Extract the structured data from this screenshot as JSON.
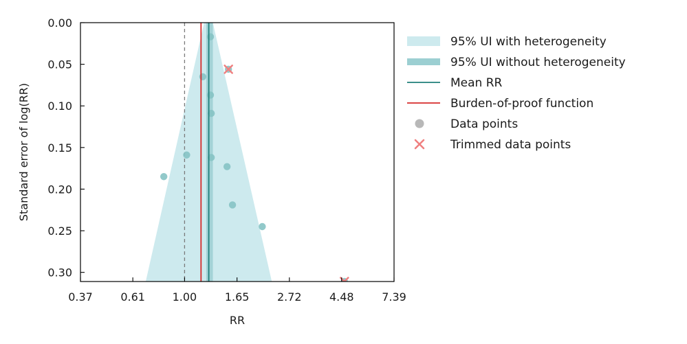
{
  "chart_data": {
    "type": "scatter",
    "title": "",
    "xlabel": "RR",
    "ylabel": "Standard error of log(RR)",
    "x_scale": "log",
    "x_ticks": [
      0.37,
      0.61,
      1.0,
      1.65,
      2.72,
      4.48,
      7.39
    ],
    "x_tick_labels": [
      "0.37",
      "0.61",
      "1.00",
      "1.65",
      "2.72",
      "4.48",
      "7.39"
    ],
    "xlim": [
      0.37,
      7.39
    ],
    "y_ticks": [
      0.0,
      0.05,
      0.1,
      0.15,
      0.2,
      0.25,
      0.3
    ],
    "y_tick_labels": [
      "0.00",
      "0.05",
      "0.10",
      "0.15",
      "0.20",
      "0.25",
      "0.30"
    ],
    "ylim": [
      0.0,
      0.311
    ],
    "y_inverted": true,
    "mean_rr": 1.26,
    "burden_of_proof_rr": 1.17,
    "reference_rr": 1.0,
    "ui_without_heterogeneity": [
      1.23,
      1.31
    ],
    "ui_with_heterogeneity_funnel": {
      "top": [
        1.205,
        1.31
      ],
      "bottom": [
        0.69,
        2.3
      ],
      "bottom_se": 0.311
    },
    "data_points": [
      {
        "rr": 1.28,
        "se": 0.017
      },
      {
        "rr": 1.52,
        "se": 0.056
      },
      {
        "rr": 1.19,
        "se": 0.065
      },
      {
        "rr": 1.28,
        "se": 0.087
      },
      {
        "rr": 1.29,
        "se": 0.109
      },
      {
        "rr": 1.02,
        "se": 0.159
      },
      {
        "rr": 1.29,
        "se": 0.162
      },
      {
        "rr": 1.5,
        "se": 0.173
      },
      {
        "rr": 0.82,
        "se": 0.185
      },
      {
        "rr": 1.58,
        "se": 0.219
      },
      {
        "rr": 2.1,
        "se": 0.245
      },
      {
        "rr": 4.6,
        "se": 0.311
      }
    ],
    "trimmed_points": [
      {
        "rr": 1.52,
        "se": 0.056
      },
      {
        "rr": 4.6,
        "se": 0.311
      }
    ],
    "legend": {
      "placement": "outside-right",
      "entries": [
        "95% UI with heterogeneity",
        "95% UI without heterogeneity",
        "Mean RR",
        "Burden-of-proof function",
        "Data points",
        "Trimmed data points"
      ]
    },
    "colors": {
      "ui_with": "#cdeaee",
      "ui_without": "#9ccfd2",
      "mean_line": "#1f7f7a",
      "burden_line": "#d62a2a",
      "point": "#86c3c4",
      "legend_point": "#b8b8b8",
      "trimmed": "#f08080",
      "reference": "#7a7a7a"
    }
  }
}
